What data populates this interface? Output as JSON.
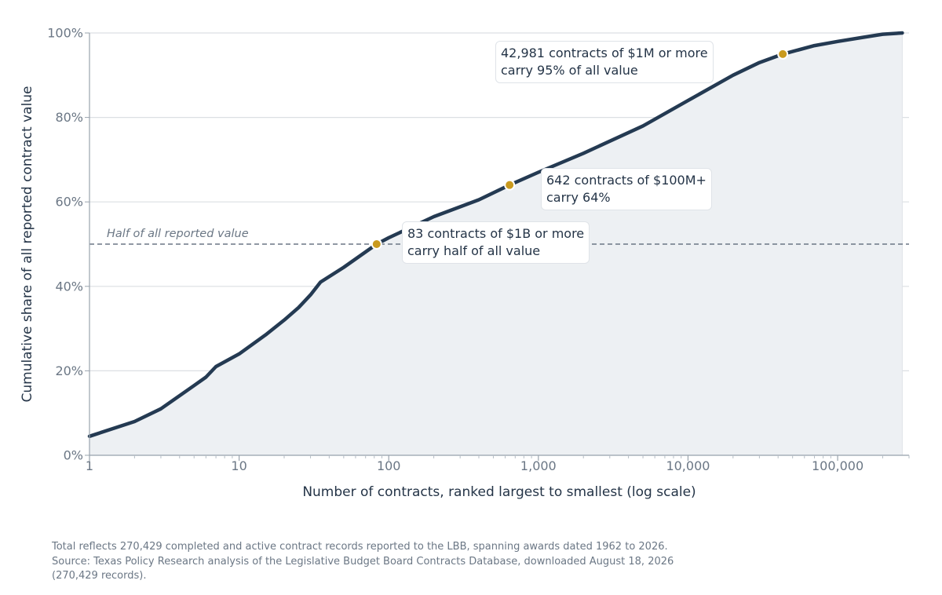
{
  "chart_data": {
    "type": "area",
    "x_scale": "log",
    "xlabel": "Number of contracts, ranked largest to smallest (log scale)",
    "ylabel": "Cumulative share of all reported contract value",
    "xlim": [
      1,
      300000
    ],
    "ylim": [
      0,
      100
    ],
    "x_ticks": [
      {
        "value": 1,
        "label": "1"
      },
      {
        "value": 10,
        "label": "10"
      },
      {
        "value": 100,
        "label": "100"
      },
      {
        "value": 1000,
        "label": "1,000"
      },
      {
        "value": 10000,
        "label": "10,000"
      },
      {
        "value": 100000,
        "label": "100,000"
      }
    ],
    "y_ticks": [
      {
        "value": 0,
        "label": "0%"
      },
      {
        "value": 20,
        "label": "20%"
      },
      {
        "value": 40,
        "label": "40%"
      },
      {
        "value": 60,
        "label": "60%"
      },
      {
        "value": 80,
        "label": "80%"
      },
      {
        "value": 100,
        "label": "100%"
      }
    ],
    "grid": "horizontal",
    "series": [
      {
        "points": [
          [
            1,
            4.5
          ],
          [
            2,
            8
          ],
          [
            3,
            11
          ],
          [
            5,
            16.5
          ],
          [
            6,
            18.5
          ],
          [
            7,
            21
          ],
          [
            10,
            24
          ],
          [
            15,
            28.5
          ],
          [
            20,
            32
          ],
          [
            25,
            35
          ],
          [
            30,
            38
          ],
          [
            35,
            41
          ],
          [
            50,
            44.5
          ],
          [
            83,
            50
          ],
          [
            100,
            51.5
          ],
          [
            200,
            56.5
          ],
          [
            400,
            60.5
          ],
          [
            642,
            64
          ],
          [
            1000,
            67
          ],
          [
            2000,
            71.5
          ],
          [
            5000,
            78
          ],
          [
            10000,
            84
          ],
          [
            20000,
            90
          ],
          [
            30000,
            93
          ],
          [
            42981,
            95
          ],
          [
            70000,
            97
          ],
          [
            100000,
            98
          ],
          [
            150000,
            99
          ],
          [
            200000,
            99.7
          ],
          [
            270429,
            100
          ]
        ]
      }
    ],
    "reference_line": {
      "y": 50,
      "label": "Half of all reported value"
    },
    "highlights": [
      {
        "x": 83,
        "y": 50,
        "lines": [
          "83 contracts of $1B or more",
          "carry half of all value"
        ]
      },
      {
        "x": 642,
        "y": 64,
        "lines": [
          "642 contracts of $100M+",
          "carry 64%"
        ]
      },
      {
        "x": 42981,
        "y": 95,
        "lines": [
          "42,981 contracts of $1M or more",
          "carry 95% of all value"
        ]
      }
    ],
    "colors": {
      "line": "#243a52",
      "fill": "#edf0f3",
      "highlight": "#c99a1e",
      "grid": "#dcdfe3",
      "reference": "#6b7785"
    }
  },
  "footer": {
    "line1": "Total reflects 270,429 completed and active contract records reported to the LBB, spanning awards dated 1962 to 2026.",
    "line2": "Source: Texas Policy Research analysis of the Legislative Budget Board Contracts Database, downloaded August 18, 2026",
    "line3": "(270,429 records)."
  }
}
